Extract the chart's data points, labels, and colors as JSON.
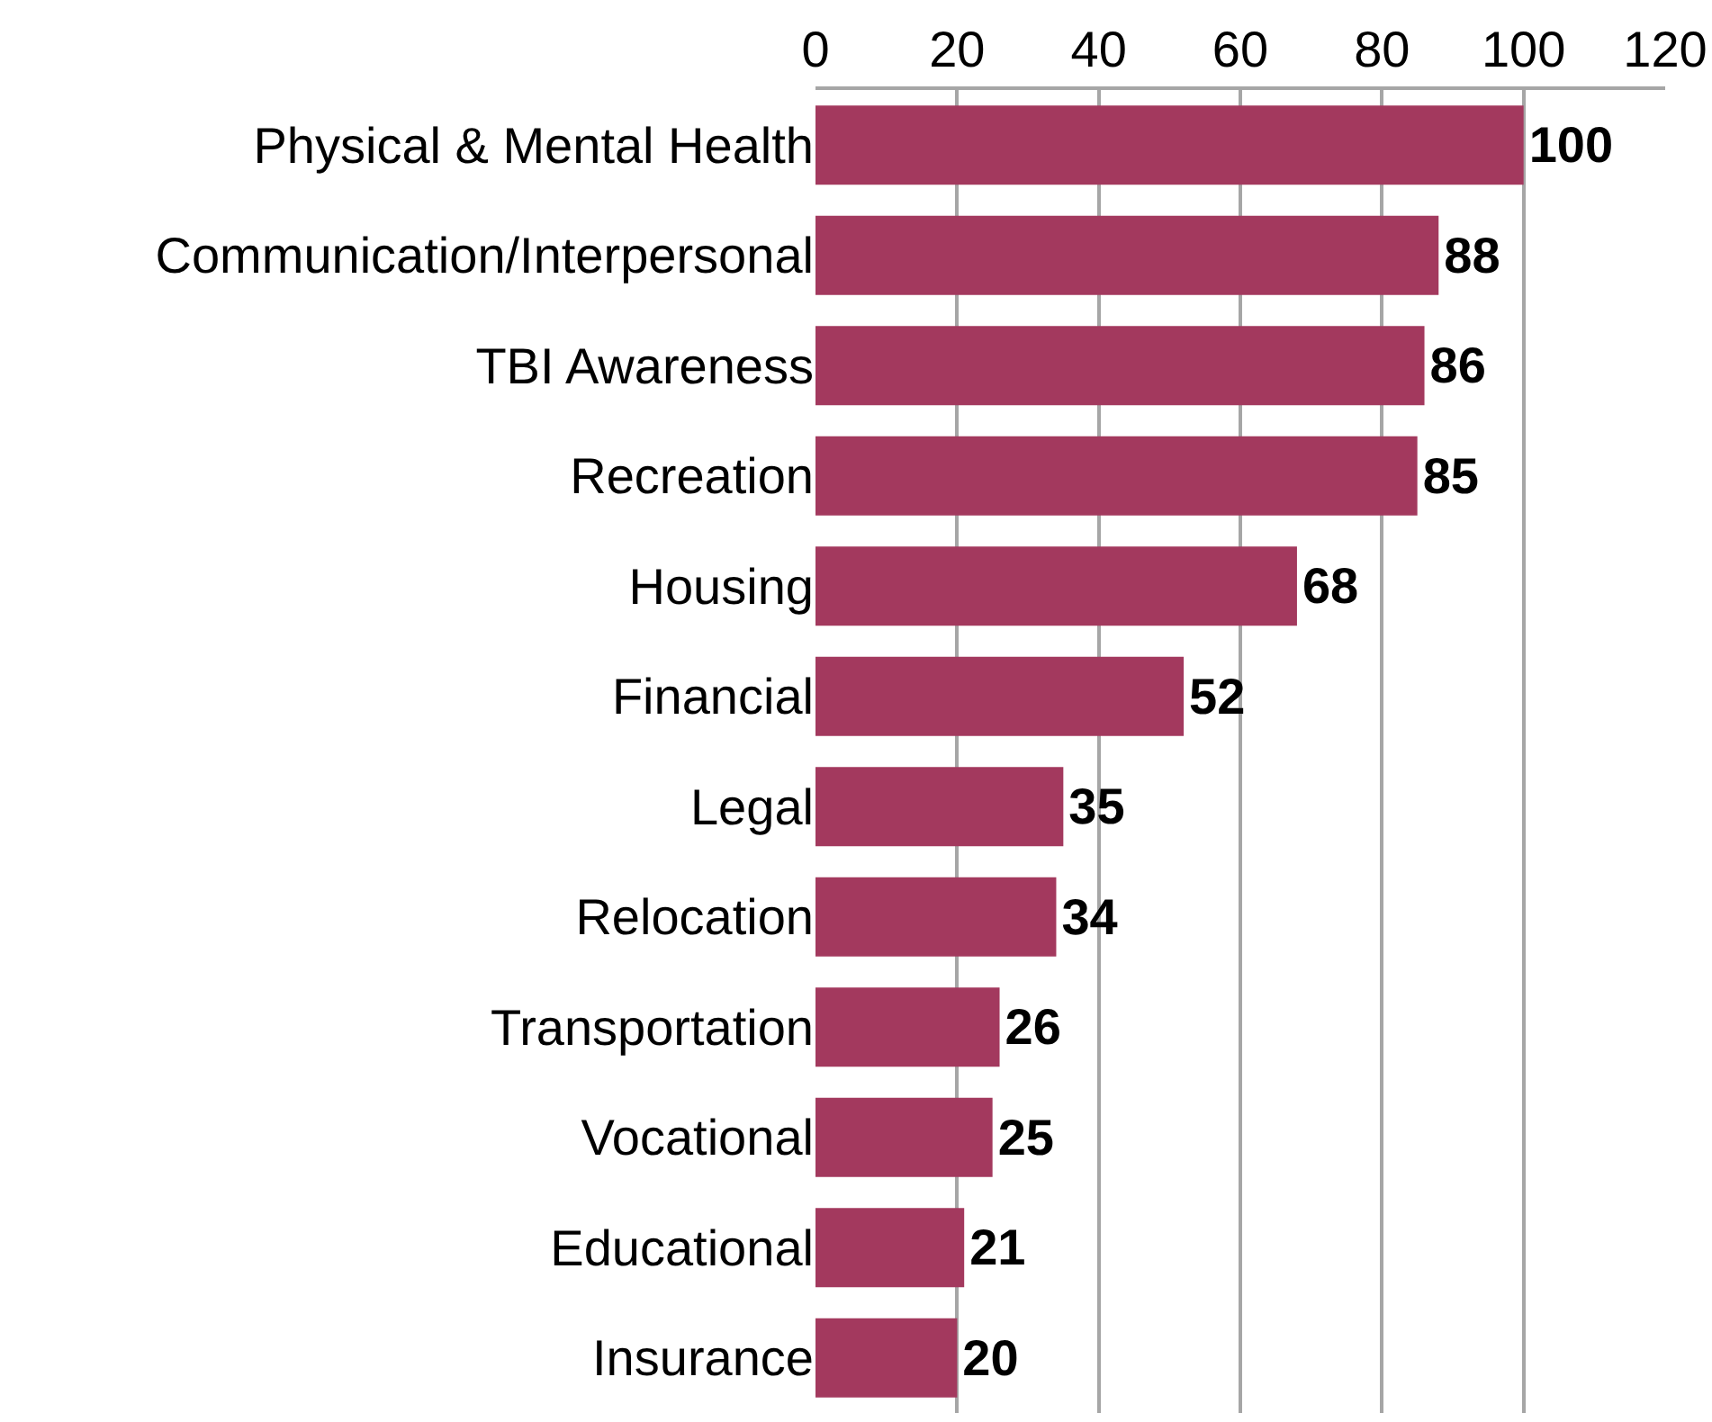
{
  "chart_data": {
    "type": "bar",
    "orientation": "horizontal",
    "categories": [
      "Physical & Mental Health",
      "Communication/Interpersonal",
      "TBI Awareness",
      "Recreation",
      "Housing",
      "Financial",
      "Legal",
      "Relocation",
      "Transportation",
      "Vocational",
      "Educational",
      "Insurance"
    ],
    "values": [
      100,
      88,
      86,
      85,
      68,
      52,
      35,
      34,
      26,
      25,
      21,
      20
    ],
    "color": "#a3395e",
    "xlim": [
      0,
      120
    ],
    "xticks": [
      0,
      20,
      40,
      60,
      80,
      100,
      120
    ],
    "grid": "x",
    "data_labels": true
  }
}
